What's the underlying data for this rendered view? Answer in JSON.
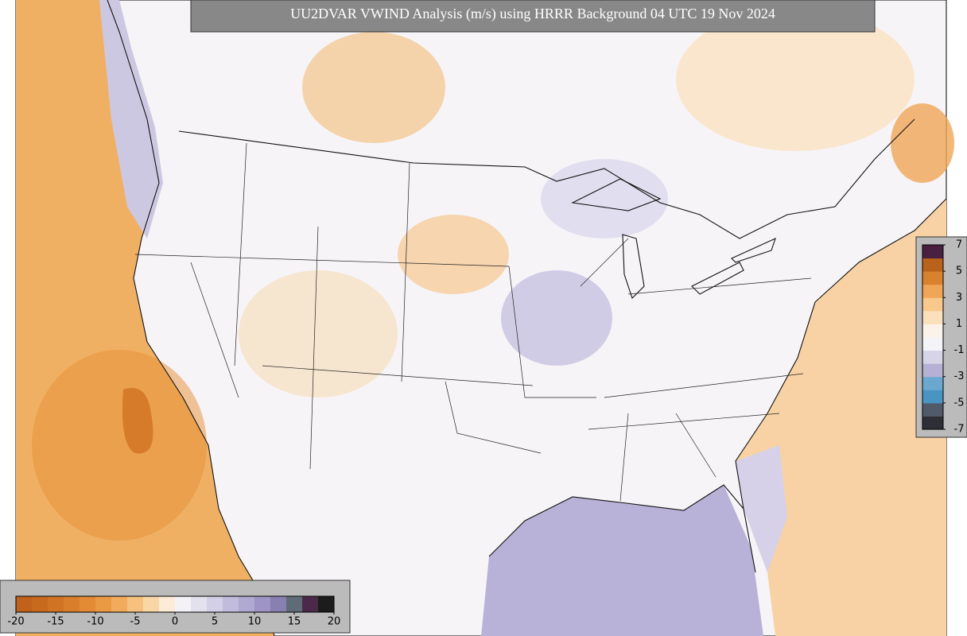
{
  "title": "UU2DVAR VWIND Analysis (m/s) using HRRR Background 04 UTC 19 Nov 2024",
  "colorbar_bottom": {
    "lim": [
      -20,
      20
    ],
    "ticks": [
      -20,
      -15,
      -10,
      -5,
      0,
      5,
      10,
      15,
      20
    ],
    "colors": [
      "#c0621c",
      "#c86a1e",
      "#d07424",
      "#d97e2a",
      "#e28a34",
      "#eb9a44",
      "#f2ab5c",
      "#f6c07e",
      "#f9d6a6",
      "#fcebd6",
      "#f4f2f7",
      "#e4e1ef",
      "#d3cfe6",
      "#c2bcdc",
      "#b0a9d1",
      "#9e95c5",
      "#8880b0",
      "#5f6c78",
      "#4a2a48",
      "#1c1c1c"
    ]
  },
  "colorbar_right": {
    "lim": [
      -7,
      7
    ],
    "ticks": [
      7,
      5,
      3,
      1,
      -1,
      -3,
      -5,
      -7
    ],
    "colors": [
      "#2e2e36",
      "#505a68",
      "#4a94c4",
      "#6aa8d0",
      "#b6b0d4",
      "#d8d4e8",
      "#f4f3f8",
      "#fbf3ea",
      "#fbe0bc",
      "#f8c88c",
      "#f0a656",
      "#d9822e",
      "#b8621c",
      "#4a2040"
    ]
  }
}
